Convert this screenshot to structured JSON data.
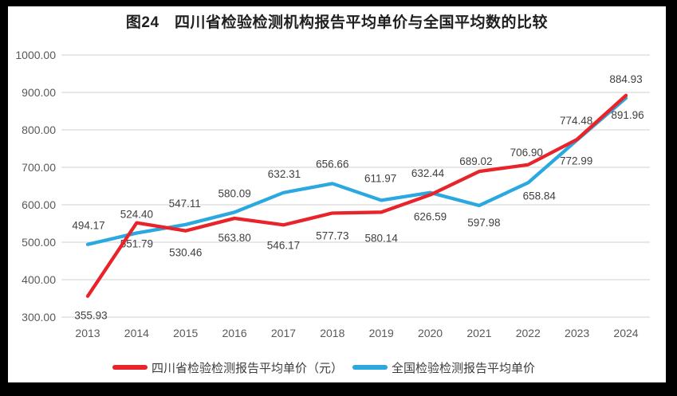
{
  "window": {
    "frame_color": "#000000",
    "panel_color": "#ffffff"
  },
  "colors": {
    "grid": "#d9d9d9",
    "axis_text": "#595959",
    "data_label_text": "#404040",
    "title_text": "#1f1f1f",
    "sichuan_red": "#e8232a",
    "national_blue": "#2aa8df"
  },
  "chart_data": {
    "type": "line",
    "title": "图24　四川省检验检测机构报告平均单价与全国平均数的比较",
    "x_categories": [
      "2013",
      "2014",
      "2015",
      "2016",
      "2017",
      "2018",
      "2019",
      "2020",
      "2021",
      "2022",
      "2023",
      "2024"
    ],
    "ylim": [
      300,
      1000
    ],
    "ytick_values": [
      300,
      400,
      500,
      600,
      700,
      800,
      900,
      1000
    ],
    "ytick_labels": [
      "300.00",
      "400.00",
      "500.00",
      "600.00",
      "700.00",
      "800.00",
      "900.00",
      "1000.00"
    ],
    "grid": true,
    "markers": false,
    "legend_position": "bottom",
    "value_label_decimals": 2,
    "series": [
      {
        "name": "四川省检验检测报告平均单价（元）",
        "color": "#e8232a",
        "values": [
          355.93,
          551.79,
          530.46,
          563.8,
          546.17,
          577.73,
          580.14,
          626.59,
          689.02,
          706.9,
          774.48,
          891.96
        ],
        "label_side": [
          "below",
          "below",
          "below",
          "below",
          "below",
          "below",
          "below",
          "below",
          "above",
          "above",
          "above",
          "below"
        ],
        "label_dx": [
          4,
          0,
          0,
          0,
          0,
          0,
          0,
          0,
          -4,
          -2,
          -1,
          2
        ],
        "label_dy": [
          24,
          26,
          27,
          24,
          25,
          28,
          32,
          27,
          -13,
          -16,
          -24,
          24
        ]
      },
      {
        "name": "全国检验检测报告平均单价",
        "color": "#2aa8df",
        "values": [
          494.17,
          524.4,
          547.11,
          580.09,
          632.31,
          656.66,
          611.97,
          632.44,
          597.98,
          658.84,
          772.99,
          884.93
        ],
        "label_side": [
          "above",
          "above",
          "above",
          "above",
          "above",
          "above",
          "above",
          "above",
          "below",
          "below",
          "below",
          "above"
        ],
        "label_dx": [
          1,
          0,
          -1,
          0,
          1,
          0,
          -1,
          -3,
          6,
          14,
          -1,
          0
        ],
        "label_dy": [
          -24,
          -24,
          -27,
          -24,
          -24,
          -25,
          -28,
          -25,
          21,
          16,
          26,
          -24
        ]
      }
    ]
  }
}
